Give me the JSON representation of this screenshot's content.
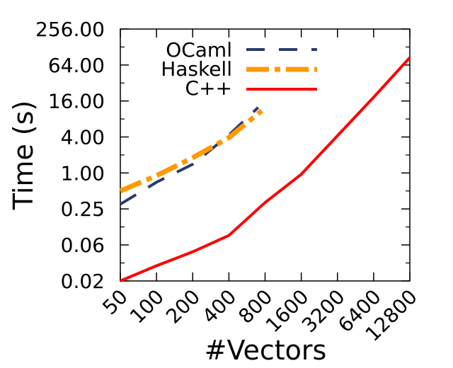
{
  "chart_data": {
    "type": "line",
    "title": "",
    "xlabel": "#Vectors",
    "ylabel": "Time (s)",
    "x_scale": "log2",
    "y_scale": "log2",
    "x_ticks": [
      "50",
      "100",
      "200",
      "400",
      "800",
      "1600",
      "3200",
      "6400",
      "12800"
    ],
    "y_ticks": [
      "0.02",
      "0.06",
      "0.25",
      "1.00",
      "4.00",
      "16.00",
      "64.00",
      "256.00"
    ],
    "y_tick_values": [
      0.0156,
      0.0625,
      0.25,
      1,
      4,
      16,
      64,
      256
    ],
    "xlim": [
      50,
      12800
    ],
    "ylim": [
      0.0156,
      256
    ],
    "grid": false,
    "legend_position": "top-left",
    "series": [
      {
        "name": "OCaml",
        "color": "#2a3a6e",
        "style": "dashed",
        "x": [
          50,
          100,
          200,
          400,
          700
        ],
        "y": [
          0.3,
          0.7,
          1.4,
          4.3,
          12.5
        ]
      },
      {
        "name": "Haskell",
        "color": "#ff9900",
        "style": "dash-dot",
        "x": [
          50,
          100,
          200,
          400,
          750
        ],
        "y": [
          0.5,
          0.9,
          1.8,
          3.9,
          11.0
        ]
      },
      {
        "name": "C++",
        "color": "#ff0000",
        "style": "solid",
        "x": [
          50,
          100,
          200,
          400,
          800,
          1600,
          3200,
          6400,
          12800
        ],
        "y": [
          0.0156,
          0.028,
          0.048,
          0.09,
          0.32,
          0.95,
          4.2,
          18.5,
          85.0
        ]
      }
    ]
  }
}
